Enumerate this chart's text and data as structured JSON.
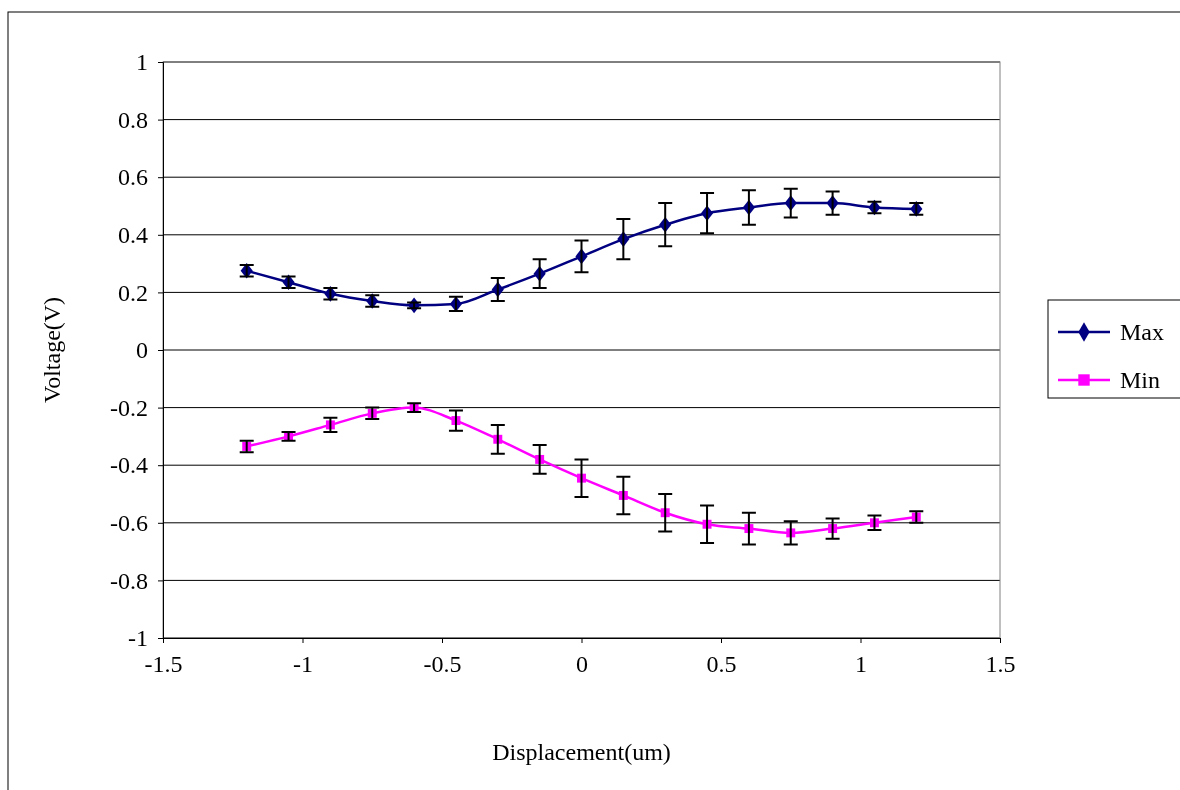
{
  "chart_data": {
    "type": "line",
    "xlabel": "Displacement(um)",
    "ylabel": "Voltage(V)",
    "x": [
      -1.2,
      -1.05,
      -0.9,
      -0.75,
      -0.6,
      -0.45,
      -0.3,
      -0.15,
      0,
      0.15,
      0.3,
      0.45,
      0.6,
      0.75,
      0.9,
      1.05,
      1.2
    ],
    "series": [
      {
        "name": "Max",
        "color": "#000080",
        "marker": "diamond",
        "values": [
          0.275,
          0.235,
          0.195,
          0.17,
          0.155,
          0.16,
          0.21,
          0.265,
          0.325,
          0.385,
          0.435,
          0.475,
          0.495,
          0.51,
          0.51,
          0.495,
          0.49
        ],
        "errors": [
          0.02,
          0.02,
          0.02,
          0.02,
          0.01,
          0.025,
          0.04,
          0.05,
          0.055,
          0.07,
          0.075,
          0.07,
          0.06,
          0.05,
          0.04,
          0.02,
          0.02
        ]
      },
      {
        "name": "Min",
        "color": "#ff00ff",
        "marker": "square",
        "values": [
          -0.335,
          -0.3,
          -0.26,
          -0.22,
          -0.2,
          -0.245,
          -0.31,
          -0.38,
          -0.445,
          -0.505,
          -0.565,
          -0.605,
          -0.62,
          -0.635,
          -0.62,
          -0.6,
          -0.58
        ],
        "errors": [
          0.02,
          0.015,
          0.025,
          0.02,
          0.015,
          0.035,
          0.05,
          0.05,
          0.065,
          0.065,
          0.065,
          0.065,
          0.055,
          0.04,
          0.035,
          0.025,
          0.02
        ]
      }
    ],
    "xlim": [
      -1.5,
      1.5
    ],
    "xticks": [
      -1.5,
      -1,
      -0.5,
      0,
      0.5,
      1,
      1.5
    ],
    "ylim": [
      -1,
      1
    ],
    "yticks": [
      -1,
      -0.8,
      -0.6,
      -0.4,
      -0.2,
      0,
      0.2,
      0.4,
      0.6,
      0.8,
      1
    ],
    "grid": "y",
    "legend": "right"
  }
}
